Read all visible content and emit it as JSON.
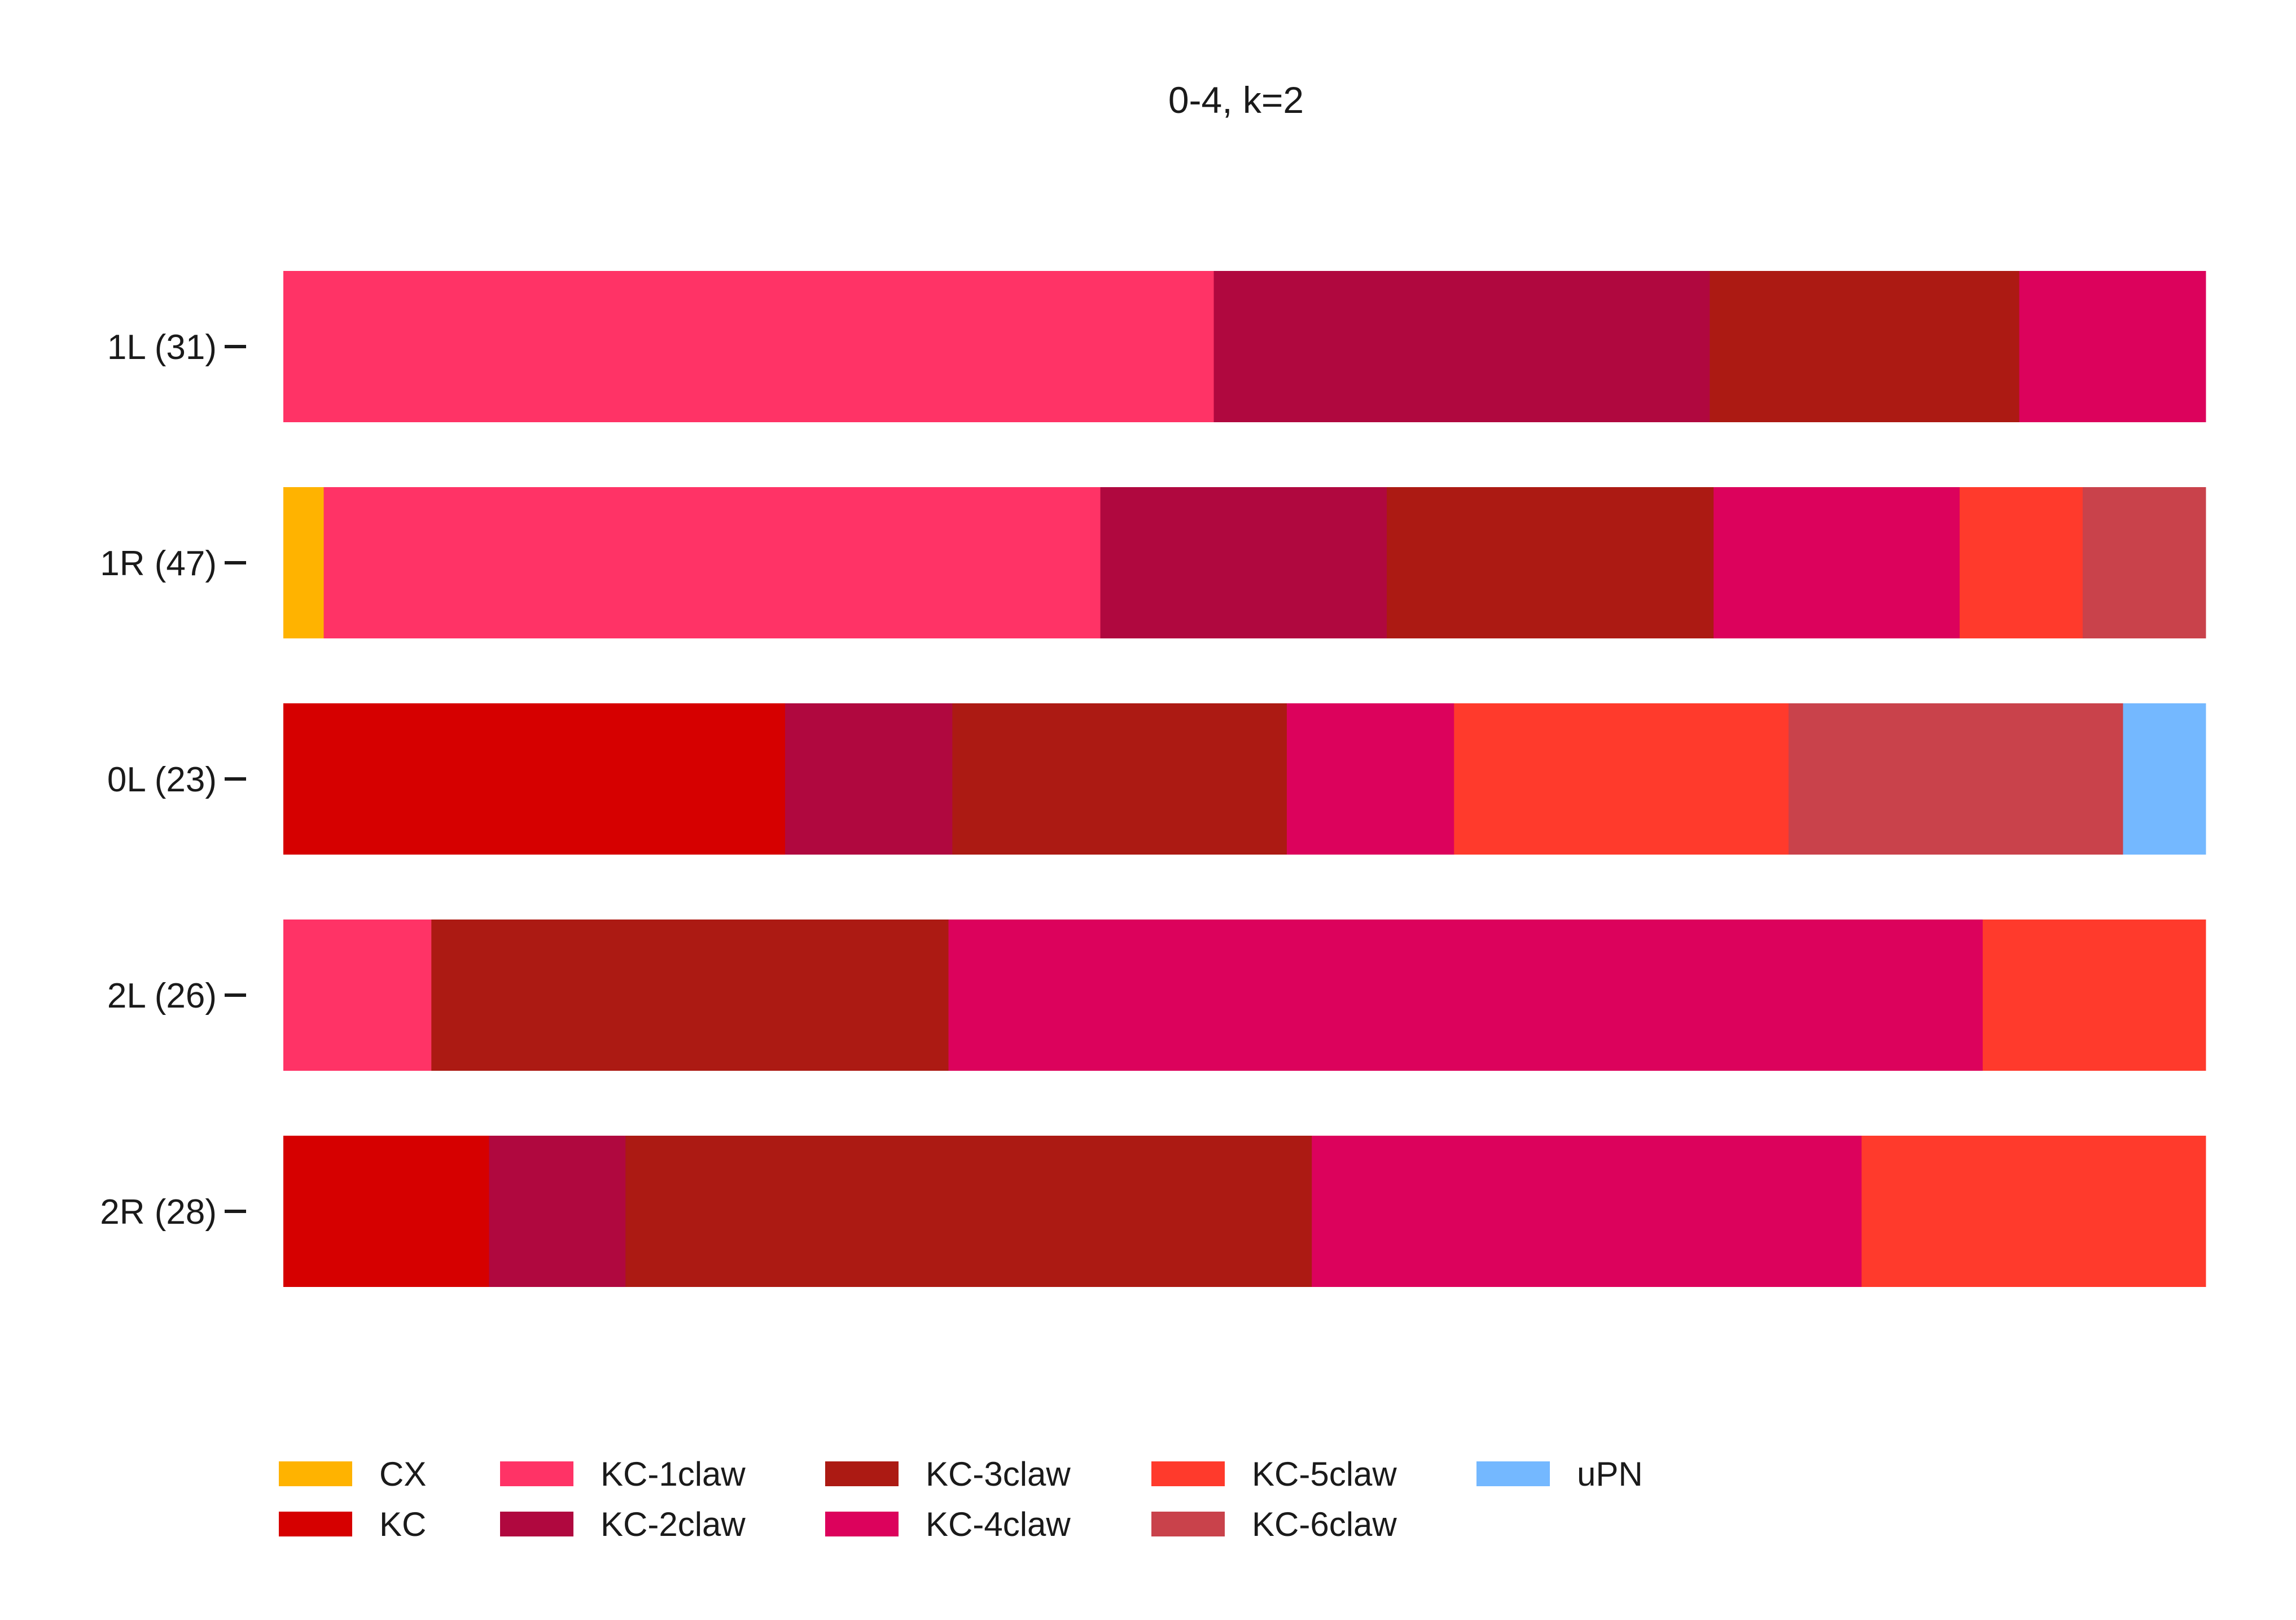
{
  "chart_data": {
    "type": "bar",
    "orientation": "horizontal",
    "stacked": true,
    "normalized": true,
    "title": "0-4, k=2",
    "xlabel": "",
    "ylabel": "",
    "xlim": [
      0,
      1
    ],
    "grid": false,
    "legend_position": "bottom",
    "categories": [
      "1L (31)",
      "1R (47)",
      "0L (23)",
      "2L (26)",
      "2R (28)"
    ],
    "series": [
      {
        "name": "CX",
        "color": "#FFB300",
        "values": [
          0.0,
          0.021,
          0.0,
          0.0,
          0.0
        ]
      },
      {
        "name": "KC",
        "color": "#D60000",
        "values": [
          0.0,
          0.0,
          0.261,
          0.0,
          0.107
        ]
      },
      {
        "name": "KC-1claw",
        "color": "#FF3366",
        "values": [
          0.484,
          0.404,
          0.0,
          0.077,
          0.0
        ]
      },
      {
        "name": "KC-2claw",
        "color": "#B0083F",
        "values": [
          0.258,
          0.149,
          0.087,
          0.0,
          0.071
        ]
      },
      {
        "name": "KC-3claw",
        "color": "#AC1A13",
        "values": [
          0.161,
          0.17,
          0.174,
          0.269,
          0.357
        ]
      },
      {
        "name": "KC-4claw",
        "color": "#DC025C",
        "values": [
          0.097,
          0.128,
          0.087,
          0.538,
          0.286
        ]
      },
      {
        "name": "KC-5claw",
        "color": "#FF3A2C",
        "values": [
          0.0,
          0.064,
          0.174,
          0.116,
          0.179
        ]
      },
      {
        "name": "KC-6claw",
        "color": "#C9424B",
        "values": [
          0.0,
          0.064,
          0.174,
          0.0,
          0.0
        ]
      },
      {
        "name": "uPN",
        "color": "#74B8FF",
        "values": [
          0.0,
          0.0,
          0.043,
          0.0,
          0.0
        ]
      }
    ]
  }
}
